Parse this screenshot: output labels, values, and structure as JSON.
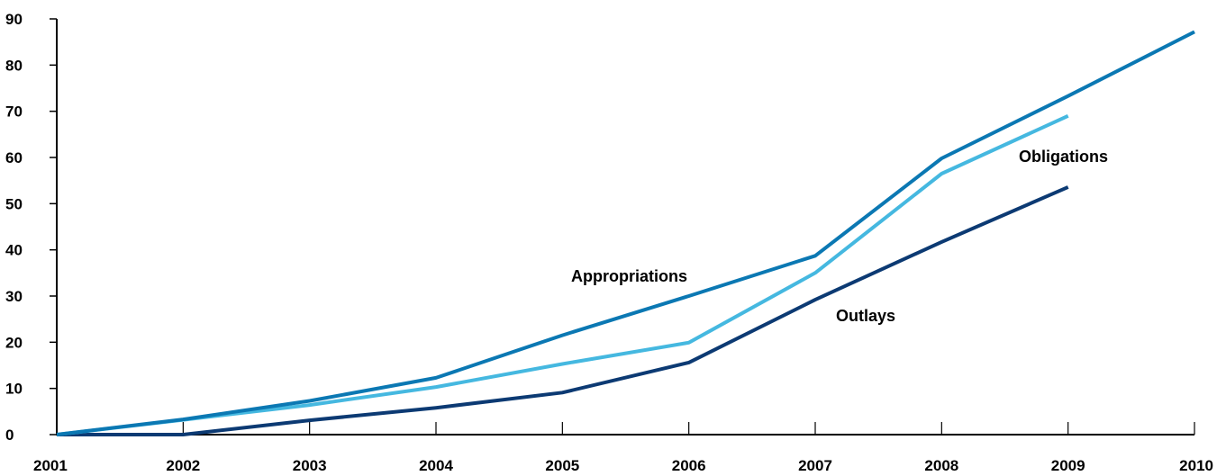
{
  "chart_data": {
    "type": "line",
    "title": "",
    "xlabel": "",
    "ylabel": "",
    "x": [
      2001,
      2002,
      2003,
      2004,
      2005,
      2006,
      2007,
      2008,
      2009,
      2010
    ],
    "x_tick_labels": [
      "2001",
      "2002",
      "2003",
      "2004",
      "2005",
      "2006",
      "2007",
      "2008",
      "2009",
      "2010"
    ],
    "ylim": [
      0,
      90
    ],
    "y_ticks": [
      0,
      10,
      20,
      30,
      40,
      50,
      60,
      70,
      80,
      90
    ],
    "y_tick_labels": [
      "0",
      "10",
      "20",
      "30",
      "40",
      "50",
      "60",
      "70",
      "80",
      "90"
    ],
    "grid": false,
    "legend": "none (series labeled inline)",
    "series": [
      {
        "name": "Appropriations",
        "color": "#0b78b3",
        "x": [
          2001,
          2002,
          2003,
          2004,
          2005,
          2006,
          2007,
          2008,
          2009,
          2010
        ],
        "values": [
          0,
          3.3,
          7.3,
          12.3,
          21.5,
          30.0,
          38.7,
          59.8,
          73.3,
          87.2
        ]
      },
      {
        "name": "Obligations",
        "color": "#45b8e0",
        "x": [
          2001,
          2002,
          2003,
          2004,
          2005,
          2006,
          2007,
          2008,
          2009
        ],
        "values": [
          0,
          3.2,
          6.4,
          10.3,
          15.3,
          19.9,
          35.0,
          56.5,
          69.0
        ]
      },
      {
        "name": "Outlays",
        "color": "#0c3a73",
        "x": [
          2001,
          2002,
          2003,
          2004,
          2005,
          2006,
          2007,
          2008,
          2009
        ],
        "values": [
          0,
          0,
          3.1,
          5.8,
          9.1,
          15.6,
          29.2,
          41.7,
          53.6
        ]
      }
    ]
  }
}
